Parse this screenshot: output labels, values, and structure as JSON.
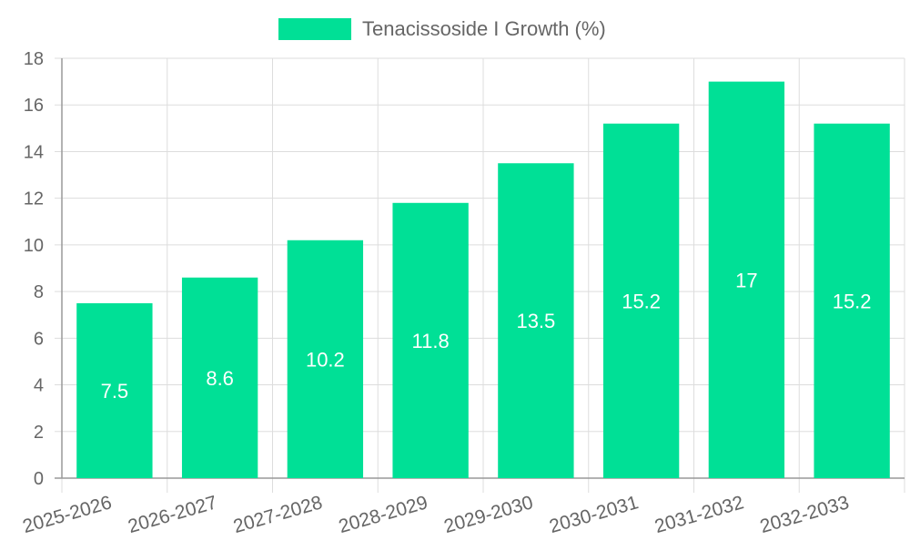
{
  "chart_data": {
    "type": "bar",
    "title": "",
    "legend": {
      "label": "Tenacissoside I Growth (%)",
      "placement": "top-center"
    },
    "categories": [
      "2025-2026",
      "2026-2027",
      "2027-2028",
      "2028-2029",
      "2029-2030",
      "2030-2031",
      "2031-2032",
      "2032-2033"
    ],
    "series": [
      {
        "name": "Tenacissoside I Growth (%)",
        "values": [
          7.5,
          8.6,
          10.2,
          11.8,
          13.5,
          15.2,
          17,
          15.2
        ]
      }
    ],
    "ylim": [
      0,
      18
    ],
    "yticks": [
      0,
      2,
      4,
      6,
      8,
      10,
      12,
      14,
      16,
      18
    ],
    "xlabel": "",
    "ylabel": "",
    "grid": true,
    "data_labels": true
  },
  "colors": {
    "bar": "#00e096",
    "grid": "#dddddd",
    "axis": "#999999",
    "tick_text": "#666666",
    "data_label": "#ffffff"
  }
}
